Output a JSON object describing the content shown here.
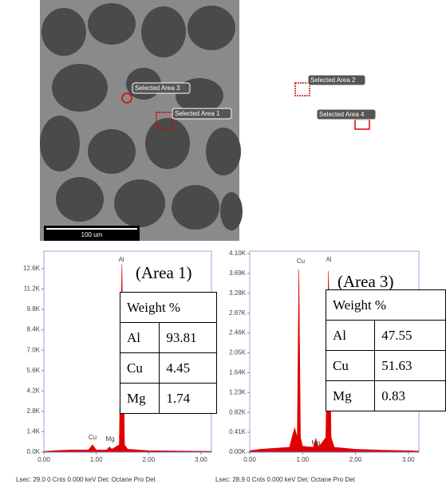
{
  "sem_image": {
    "labels": [
      "Selected Area 3",
      "Selected Area 2",
      "Selected Area 1",
      "Selected Area 4"
    ],
    "scale_bar": "100 um"
  },
  "panels": [
    {
      "area_label": "(Area 1)",
      "table": {
        "header": "Weight %",
        "rows": [
          [
            "Al",
            "93.81"
          ],
          [
            "Cu",
            "4.45"
          ],
          [
            "Mg",
            "1.74"
          ]
        ]
      },
      "footer": "Lsec: 29.0 0 Cnts  0.000 keV Det: Octane Pro Det"
    },
    {
      "area_label": "(Area 3)",
      "table": {
        "header": "Weight %",
        "rows": [
          [
            "Al",
            "47.55"
          ],
          [
            "Cu",
            "51.63"
          ],
          [
            "Mg",
            "0.83"
          ]
        ]
      },
      "footer": "Lsec: 28.9 0 Cnts  0.000 keV Det: Octane Pro Det"
    }
  ],
  "chart_data": [
    {
      "type": "area",
      "color": "#e00000",
      "x": [
        0,
        0.2,
        0.5,
        0.85,
        0.93,
        1.0,
        1.2,
        1.25,
        1.3,
        1.44,
        1.49,
        1.54,
        1.6,
        2.0,
        2.5,
        3.0,
        3.2
      ],
      "values": [
        50,
        100,
        150,
        150,
        500,
        150,
        150,
        350,
        200,
        500,
        12900,
        500,
        200,
        100,
        80,
        60,
        50
      ],
      "annotations": [
        "Al",
        "Cu",
        "Mg"
      ],
      "xlim": [
        0,
        3.2
      ],
      "ylim": [
        0,
        13800
      ],
      "xticks": [
        {
          "value": 0,
          "label": "0.00"
        },
        {
          "value": 1,
          "label": "1.00"
        },
        {
          "value": 2,
          "label": "2.00"
        },
        {
          "value": 3,
          "label": "3.00"
        }
      ],
      "yticks": [
        {
          "value": 0,
          "label": "0.0K"
        },
        {
          "value": 1400,
          "label": "1.4K"
        },
        {
          "value": 2800,
          "label": "2.8K"
        },
        {
          "value": 4200,
          "label": "4.2K"
        },
        {
          "value": 5600,
          "label": "5.6K"
        },
        {
          "value": 7000,
          "label": "7.0K"
        },
        {
          "value": 8400,
          "label": "8.4K"
        },
        {
          "value": 9800,
          "label": "9.8K"
        },
        {
          "value": 11200,
          "label": "11.2K"
        },
        {
          "value": 12600,
          "label": "12.6K"
        }
      ]
    },
    {
      "type": "area",
      "color": "#e00000",
      "x": [
        0,
        0.2,
        0.5,
        0.75,
        0.85,
        0.9,
        0.93,
        0.96,
        1.0,
        1.2,
        1.25,
        1.3,
        1.44,
        1.49,
        1.54,
        1.6,
        2.0,
        2.5,
        3.0,
        3.2
      ],
      "values": [
        30,
        60,
        80,
        100,
        500,
        300,
        3770,
        300,
        120,
        100,
        280,
        100,
        300,
        3740,
        300,
        100,
        60,
        40,
        30,
        20
      ],
      "annotations": [
        "Cu",
        "Al",
        "Mg"
      ],
      "xlim": [
        0,
        3.2
      ],
      "ylim": [
        0,
        4150
      ],
      "xticks": [
        {
          "value": 0,
          "label": "0.00"
        },
        {
          "value": 1,
          "label": "1.00"
        },
        {
          "value": 2,
          "label": "2.00"
        },
        {
          "value": 3,
          "label": "3.00"
        }
      ],
      "yticks": [
        {
          "value": 0,
          "label": "0.00K"
        },
        {
          "value": 410,
          "label": "0.41K"
        },
        {
          "value": 820,
          "label": "0.82K"
        },
        {
          "value": 1230,
          "label": "1.23K"
        },
        {
          "value": 1640,
          "label": "1.64K"
        },
        {
          "value": 2050,
          "label": "2.05K"
        },
        {
          "value": 2460,
          "label": "2.46K"
        },
        {
          "value": 2870,
          "label": "2.87K"
        },
        {
          "value": 3280,
          "label": "3.28K"
        },
        {
          "value": 3690,
          "label": "3.69K"
        },
        {
          "value": 4100,
          "label": "4.10K"
        }
      ]
    }
  ]
}
